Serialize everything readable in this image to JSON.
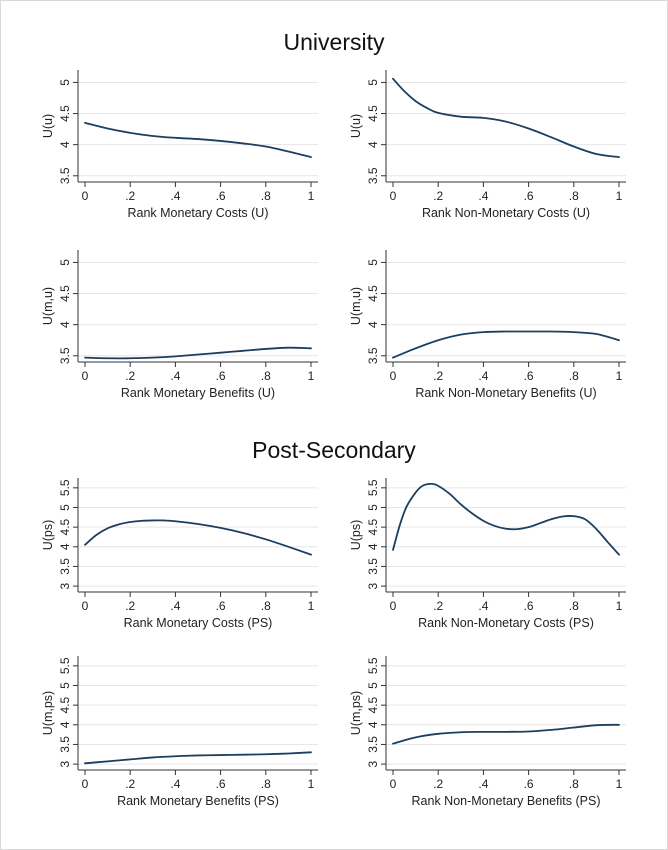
{
  "sections": [
    {
      "title": "University"
    },
    {
      "title": "Post-Secondary"
    }
  ],
  "style": {
    "line_color": "#1c3f5f",
    "grid_color": "#e6e6e6"
  },
  "chart_data": [
    {
      "type": "line",
      "section": "University",
      "xlabel": "Rank Monetary Costs (U)",
      "ylabel": "U(u)",
      "xlim": [
        0,
        1
      ],
      "ylim": [
        3.4,
        5.2
      ],
      "xticks": [
        0,
        0.2,
        0.4,
        0.6,
        0.8,
        1
      ],
      "xtick_labels": [
        "0",
        ".2",
        ".4",
        ".6",
        ".8",
        "1"
      ],
      "yticks": [
        3.5,
        4,
        4.5,
        5
      ],
      "ytick_labels": [
        "3.5",
        "4",
        "4.5",
        "5"
      ],
      "grid": true,
      "series": [
        {
          "x": [
            0,
            0.1,
            0.2,
            0.3,
            0.4,
            0.5,
            0.6,
            0.7,
            0.8,
            0.9,
            1.0
          ],
          "y": [
            4.35,
            4.26,
            4.19,
            4.14,
            4.11,
            4.09,
            4.06,
            4.02,
            3.97,
            3.89,
            3.8
          ]
        }
      ]
    },
    {
      "type": "line",
      "section": "University",
      "xlabel": "Rank Non-Monetary Costs (U)",
      "ylabel": "U(u)",
      "xlim": [
        0,
        1
      ],
      "ylim": [
        3.4,
        5.2
      ],
      "xticks": [
        0,
        0.2,
        0.4,
        0.6,
        0.8,
        1
      ],
      "xtick_labels": [
        "0",
        ".2",
        ".4",
        ".6",
        ".8",
        "1"
      ],
      "yticks": [
        3.5,
        4,
        4.5,
        5
      ],
      "ytick_labels": [
        "3.5",
        "4",
        "4.5",
        "5"
      ],
      "grid": true,
      "series": [
        {
          "x": [
            0,
            0.05,
            0.1,
            0.15,
            0.2,
            0.3,
            0.4,
            0.5,
            0.6,
            0.7,
            0.8,
            0.9,
            1.0
          ],
          "y": [
            5.06,
            4.86,
            4.7,
            4.59,
            4.51,
            4.45,
            4.43,
            4.37,
            4.26,
            4.12,
            3.97,
            3.85,
            3.8
          ]
        }
      ]
    },
    {
      "type": "line",
      "section": "University",
      "xlabel": "Rank Monetary Benefits (U)",
      "ylabel": "U(m,u)",
      "xlim": [
        0,
        1
      ],
      "ylim": [
        3.4,
        5.2
      ],
      "xticks": [
        0,
        0.2,
        0.4,
        0.6,
        0.8,
        1
      ],
      "xtick_labels": [
        "0",
        ".2",
        ".4",
        ".6",
        ".8",
        "1"
      ],
      "yticks": [
        3.5,
        4,
        4.5,
        5
      ],
      "ytick_labels": [
        "3.5",
        "4",
        "4.5",
        "5"
      ],
      "grid": true,
      "series": [
        {
          "x": [
            0,
            0.1,
            0.2,
            0.3,
            0.4,
            0.5,
            0.6,
            0.7,
            0.8,
            0.9,
            1.0
          ],
          "y": [
            3.47,
            3.46,
            3.46,
            3.47,
            3.49,
            3.52,
            3.55,
            3.58,
            3.61,
            3.63,
            3.62
          ]
        }
      ]
    },
    {
      "type": "line",
      "section": "University",
      "xlabel": "Rank Non-Monetary Benefits (U)",
      "ylabel": "U(m,u)",
      "xlim": [
        0,
        1
      ],
      "ylim": [
        3.4,
        5.2
      ],
      "xticks": [
        0,
        0.2,
        0.4,
        0.6,
        0.8,
        1
      ],
      "xtick_labels": [
        "0",
        ".2",
        ".4",
        ".6",
        ".8",
        "1"
      ],
      "yticks": [
        3.5,
        4,
        4.5,
        5
      ],
      "ytick_labels": [
        "3.5",
        "4",
        "4.5",
        "5"
      ],
      "grid": true,
      "series": [
        {
          "x": [
            0,
            0.1,
            0.2,
            0.3,
            0.4,
            0.5,
            0.6,
            0.7,
            0.8,
            0.9,
            1.0
          ],
          "y": [
            3.47,
            3.62,
            3.75,
            3.84,
            3.88,
            3.89,
            3.89,
            3.89,
            3.88,
            3.85,
            3.75
          ]
        }
      ]
    },
    {
      "type": "line",
      "section": "Post-Secondary",
      "xlabel": "Rank Monetary Costs (PS)",
      "ylabel": "U(ps)",
      "xlim": [
        0,
        1
      ],
      "ylim": [
        2.85,
        5.75
      ],
      "xticks": [
        0,
        0.2,
        0.4,
        0.6,
        0.8,
        1
      ],
      "xtick_labels": [
        "0",
        ".2",
        ".4",
        ".6",
        ".8",
        "1"
      ],
      "yticks": [
        3,
        3.5,
        4,
        4.5,
        5,
        5.5
      ],
      "ytick_labels": [
        "3",
        "3.5",
        "4",
        "4.5",
        "5",
        "5.5"
      ],
      "grid": true,
      "series": [
        {
          "x": [
            0,
            0.05,
            0.1,
            0.15,
            0.2,
            0.25,
            0.3,
            0.35,
            0.4,
            0.5,
            0.6,
            0.7,
            0.8,
            0.9,
            1.0
          ],
          "y": [
            4.05,
            4.3,
            4.47,
            4.57,
            4.63,
            4.66,
            4.67,
            4.67,
            4.65,
            4.58,
            4.48,
            4.35,
            4.19,
            4.0,
            3.8
          ]
        }
      ]
    },
    {
      "type": "line",
      "section": "Post-Secondary",
      "xlabel": "Rank Non-Monetary Costs (PS)",
      "ylabel": "U(ps)",
      "xlim": [
        0,
        1
      ],
      "ylim": [
        2.85,
        5.75
      ],
      "xticks": [
        0,
        0.2,
        0.4,
        0.6,
        0.8,
        1
      ],
      "xtick_labels": [
        "0",
        ".2",
        ".4",
        ".6",
        ".8",
        "1"
      ],
      "yticks": [
        3,
        3.5,
        4,
        4.5,
        5,
        5.5
      ],
      "ytick_labels": [
        "3",
        "3.5",
        "4",
        "4.5",
        "5",
        "5.5"
      ],
      "grid": true,
      "series": [
        {
          "x": [
            0,
            0.03,
            0.06,
            0.1,
            0.13,
            0.17,
            0.2,
            0.25,
            0.3,
            0.35,
            0.4,
            0.45,
            0.5,
            0.55,
            0.6,
            0.65,
            0.7,
            0.75,
            0.8,
            0.85,
            0.9,
            0.95,
            1.0
          ],
          "y": [
            3.92,
            4.55,
            5.02,
            5.38,
            5.55,
            5.6,
            5.55,
            5.35,
            5.08,
            4.85,
            4.66,
            4.53,
            4.46,
            4.45,
            4.5,
            4.6,
            4.7,
            4.77,
            4.78,
            4.7,
            4.45,
            4.12,
            3.8
          ]
        }
      ]
    },
    {
      "type": "line",
      "section": "Post-Secondary",
      "xlabel": "Rank Monetary Benefits (PS)",
      "ylabel": "U(m,ps)",
      "xlim": [
        0,
        1
      ],
      "ylim": [
        2.85,
        5.75
      ],
      "xticks": [
        0,
        0.2,
        0.4,
        0.6,
        0.8,
        1
      ],
      "xtick_labels": [
        "0",
        ".2",
        ".4",
        ".6",
        ".8",
        "1"
      ],
      "yticks": [
        3,
        3.5,
        4,
        4.5,
        5,
        5.5
      ],
      "ytick_labels": [
        "3",
        "3.5",
        "4",
        "4.5",
        "5",
        "5.5"
      ],
      "grid": true,
      "series": [
        {
          "x": [
            0,
            0.1,
            0.2,
            0.3,
            0.4,
            0.5,
            0.6,
            0.7,
            0.8,
            0.9,
            1.0
          ],
          "y": [
            3.02,
            3.07,
            3.12,
            3.17,
            3.2,
            3.22,
            3.23,
            3.24,
            3.25,
            3.27,
            3.3
          ]
        }
      ]
    },
    {
      "type": "line",
      "section": "Post-Secondary",
      "xlabel": "Rank Non-Monetary Benefits (PS)",
      "ylabel": "U(m,ps)",
      "xlim": [
        0,
        1
      ],
      "ylim": [
        2.85,
        5.75
      ],
      "xticks": [
        0,
        0.2,
        0.4,
        0.6,
        0.8,
        1
      ],
      "xtick_labels": [
        "0",
        ".2",
        ".4",
        ".6",
        ".8",
        "1"
      ],
      "yticks": [
        3,
        3.5,
        4,
        4.5,
        5,
        5.5
      ],
      "ytick_labels": [
        "3",
        "3.5",
        "4",
        "4.5",
        "5",
        "5.5"
      ],
      "grid": true,
      "series": [
        {
          "x": [
            0,
            0.1,
            0.2,
            0.3,
            0.4,
            0.5,
            0.6,
            0.7,
            0.8,
            0.9,
            1.0
          ],
          "y": [
            3.52,
            3.68,
            3.77,
            3.81,
            3.82,
            3.82,
            3.83,
            3.87,
            3.93,
            3.99,
            4.0
          ]
        }
      ]
    }
  ]
}
